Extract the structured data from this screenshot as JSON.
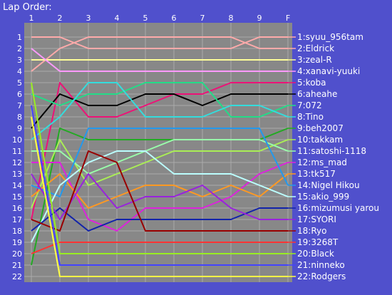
{
  "chart_data": {
    "type": "line",
    "title": "Lap Order:",
    "x_labels": [
      "1",
      "2",
      "3",
      "4",
      "5",
      "6",
      "7",
      "8",
      "9",
      "F"
    ],
    "y_labels": [
      "1",
      "2",
      "3",
      "4",
      "5",
      "6",
      "7",
      "8",
      "9",
      "10",
      "11",
      "12",
      "13",
      "14",
      "15",
      "16",
      "17",
      "18",
      "19",
      "20",
      "21",
      "22"
    ],
    "ylim": [
      1,
      22
    ],
    "grid": true,
    "plot_background": "#888888",
    "grid_color": "#aaaaaa",
    "legend_placement": "right",
    "series": [
      {
        "name": "1:syuu_956tam",
        "color": "#ffaaaa",
        "values": [
          1,
          1,
          2,
          2,
          2,
          2,
          2,
          2,
          1,
          1
        ]
      },
      {
        "name": "2:Eldrick",
        "color": "#ffaaaa",
        "values": [
          4,
          2,
          1,
          1,
          1,
          1,
          1,
          1,
          2,
          2
        ]
      },
      {
        "name": "3:zeal-R",
        "color": "#ffff99",
        "values": [
          3,
          3,
          3,
          3,
          3,
          3,
          3,
          3,
          3,
          3
        ]
      },
      {
        "name": "4:xanavi-yuuki",
        "color": "#ff99ff",
        "values": [
          2,
          4,
          4,
          4,
          4,
          4,
          4,
          4,
          4,
          4
        ]
      },
      {
        "name": "5:koba",
        "color": "#ee1177",
        "values": [
          17,
          5,
          8,
          8,
          7,
          6,
          6,
          5,
          5,
          5
        ]
      },
      {
        "name": "6:aheahe",
        "color": "#000000",
        "values": [
          9,
          6,
          7,
          7,
          6,
          6,
          7,
          6,
          6,
          6
        ]
      },
      {
        "name": "7:072",
        "color": "#22dd88",
        "values": [
          6,
          7,
          6,
          6,
          5,
          5,
          5,
          8,
          8,
          7
        ]
      },
      {
        "name": "8:Tino",
        "color": "#33dddd",
        "values": [
          10,
          8,
          5,
          5,
          8,
          8,
          8,
          7,
          7,
          8
        ]
      },
      {
        "name": "9:beh2007",
        "color": "#22aa22",
        "values": [
          21,
          9,
          10,
          10,
          10,
          10,
          10,
          10,
          10,
          9
        ]
      },
      {
        "name": "10:takkam",
        "color": "#aaee55",
        "values": [
          16,
          10,
          14,
          13,
          12,
          11,
          11,
          11,
          11,
          10
        ]
      },
      {
        "name": "11:satoshi-1118",
        "color": "#99ffaa",
        "values": [
          11,
          11,
          13,
          12,
          11,
          10,
          10,
          10,
          10,
          11
        ]
      },
      {
        "name": "12:ms_mad",
        "color": "#dd22dd",
        "values": [
          12,
          12,
          17,
          18,
          16,
          16,
          16,
          15,
          13,
          12
        ]
      },
      {
        "name": "13:tk517",
        "color": "#ff9922",
        "values": [
          15,
          13,
          16,
          15,
          14,
          14,
          15,
          14,
          15,
          13
        ]
      },
      {
        "name": "14:Nigel Hikou",
        "color": "#2299ee",
        "values": [
          14,
          15,
          9,
          9,
          9,
          9,
          9,
          9,
          9,
          14
        ]
      },
      {
        "name": "15:akio_999",
        "color": "#bbffff",
        "values": [
          19,
          14,
          12,
          11,
          11,
          13,
          13,
          13,
          14,
          15
        ]
      },
      {
        "name": "16:mizumusi yarou",
        "color": "#1122aa",
        "values": [
          18,
          16,
          18,
          17,
          17,
          17,
          17,
          17,
          16,
          16
        ]
      },
      {
        "name": "17:SYORI",
        "color": "#9922dd",
        "values": [
          13,
          17,
          13,
          16,
          15,
          15,
          14,
          16,
          17,
          17
        ]
      },
      {
        "name": "18:Ryo",
        "color": "#990000",
        "values": [
          17,
          18,
          11,
          12,
          18,
          18,
          18,
          18,
          18,
          18
        ]
      },
      {
        "name": "19:3268T",
        "color": "#ff3333",
        "values": [
          20,
          19,
          19,
          19,
          19,
          19,
          19,
          19,
          19,
          19
        ]
      },
      {
        "name": "20:Black",
        "color": "#99ee22",
        "values": [
          5,
          20,
          20,
          20,
          20,
          20,
          20,
          20,
          20,
          20
        ]
      },
      {
        "name": "21:ninneko",
        "color": "#4444ff",
        "values": [
          7,
          21,
          21,
          21,
          21,
          21,
          21,
          21,
          21,
          21
        ]
      },
      {
        "name": "22:Rodgers",
        "color": "#ffff44",
        "values": [
          8,
          22,
          22,
          22,
          22,
          22,
          22,
          22,
          22,
          22
        ]
      }
    ]
  }
}
